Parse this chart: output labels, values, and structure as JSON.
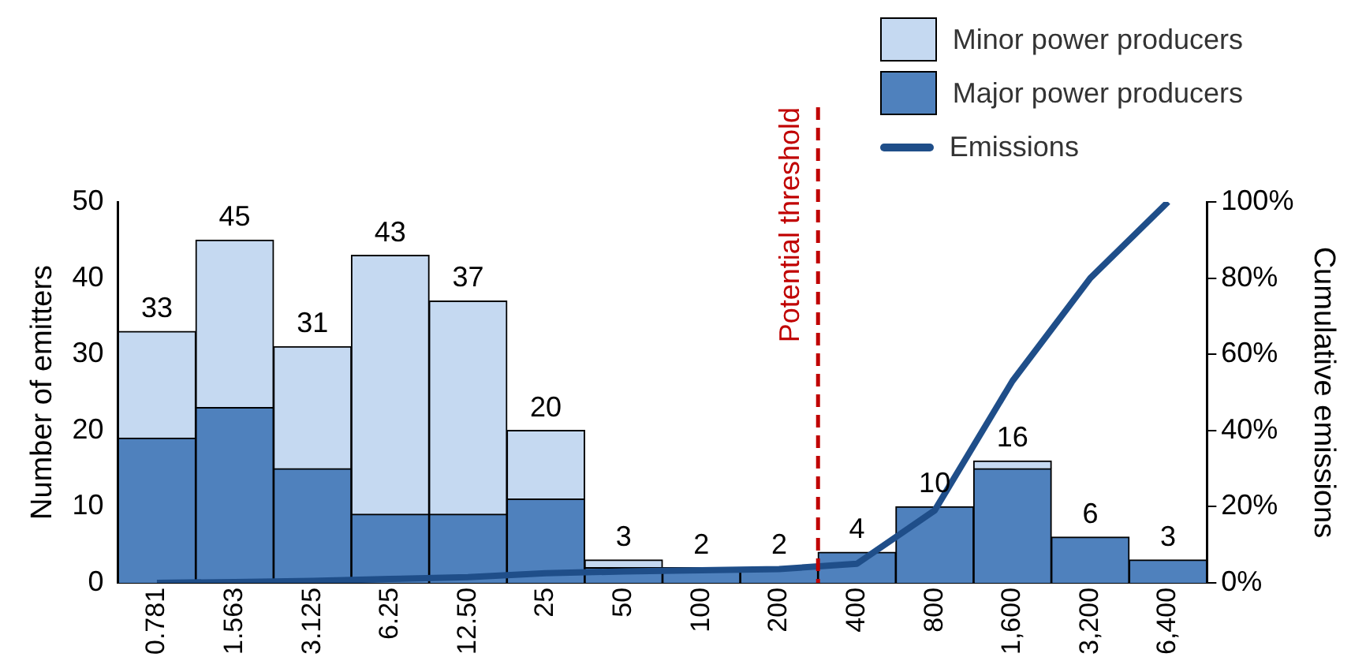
{
  "chart_data": {
    "type": "bar",
    "stacked": true,
    "categories": [
      "0.781",
      "1.563",
      "3.125",
      "6.25",
      "12.50",
      "25",
      "50",
      "100",
      "200",
      "400",
      "800",
      "1,600",
      "3,200",
      "6,400"
    ],
    "series": [
      {
        "name": "Major power producers",
        "color": "#4f81bd",
        "values": [
          19,
          23,
          15,
          9,
          9,
          11,
          2,
          2,
          2,
          4,
          10,
          15,
          6,
          3
        ]
      },
      {
        "name": "Minor power producers",
        "color": "#c5d9f1",
        "values": [
          14,
          22,
          16,
          34,
          28,
          9,
          1,
          0,
          0,
          0,
          0,
          1,
          0,
          0
        ]
      },
      {
        "name": "Emissions",
        "type": "line",
        "axis": "y2",
        "color": "#1f4e89",
        "marker": "none",
        "values": [
          0,
          0.2,
          0.5,
          1,
          1.5,
          2.5,
          3,
          3.3,
          3.6,
          5,
          19,
          53,
          80,
          100
        ]
      }
    ],
    "totals": [
      "33",
      "45",
      "31",
      "43",
      "37",
      "20",
      "3",
      "2",
      "2",
      "4",
      "10",
      "16",
      "6",
      "3"
    ],
    "ylabel": "Number of emitters",
    "y2label": "Cumulative emissions",
    "ylim": [
      0,
      50
    ],
    "yticks": [
      0,
      10,
      20,
      30,
      40,
      50
    ],
    "y2lim": [
      0,
      100
    ],
    "y2ticks": [
      {
        "value": 0,
        "label": "0%"
      },
      {
        "value": 20,
        "label": "20%"
      },
      {
        "value": 40,
        "label": "40%"
      },
      {
        "value": 60,
        "label": "60%"
      },
      {
        "value": 80,
        "label": "80%"
      },
      {
        "value": 100,
        "label": "100%"
      }
    ],
    "ref_lines": [
      {
        "axis": "x",
        "value": "200",
        "label": "Potential threshold",
        "color": "#c00000",
        "line_style": "dashed"
      }
    ],
    "legend": "top right",
    "grid": false
  }
}
